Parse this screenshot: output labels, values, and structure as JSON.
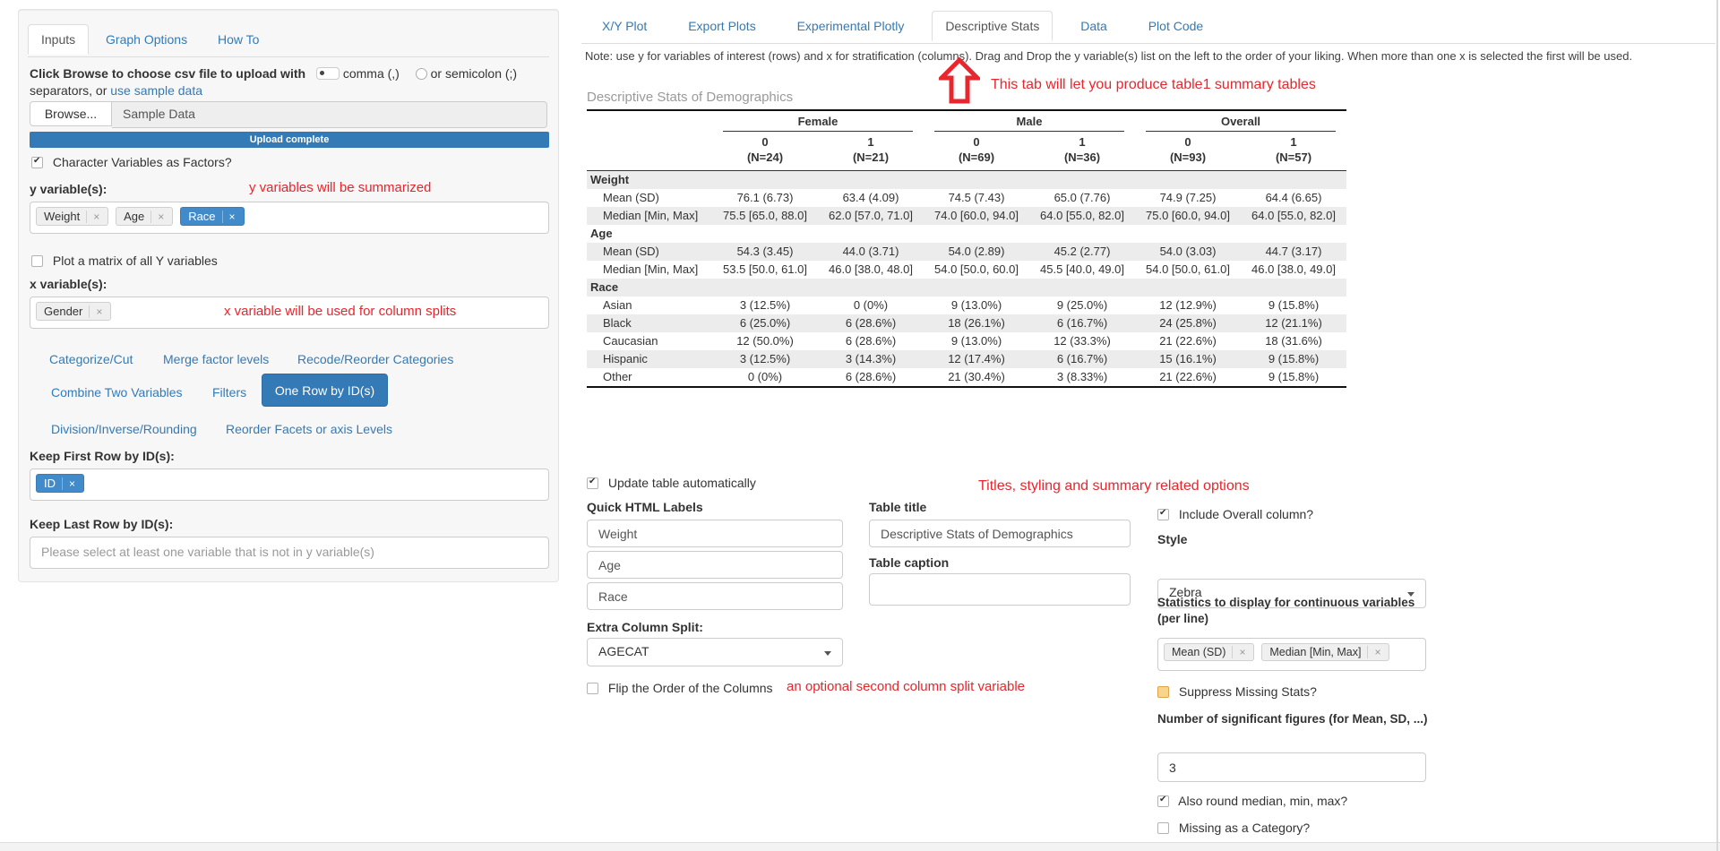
{
  "colors": {
    "accent": "#337ab7",
    "token_blue": "#428bca",
    "annotation_red": "#e8262d",
    "zebra_stripe": "#ececec"
  },
  "left_panel": {
    "tabs": [
      {
        "label": "Inputs"
      },
      {
        "label": "Graph Options"
      },
      {
        "label": "How To"
      }
    ],
    "upload": {
      "bold_text": "Click Browse to choose csv file to upload with",
      "radio_comma": "comma (,)",
      "radio_semicolon": "or semicolon (;)",
      "separators_text": "separators, or",
      "sample_link": "use sample data",
      "browse_button": "Browse...",
      "file_name": "Sample Data",
      "progress": "Upload complete"
    },
    "char_factors_checkbox": "Character Variables as Factors?",
    "y_label": "y variable(s):",
    "y_annotation": "y variables will be summarized",
    "y_tokens": [
      {
        "label": "Weight"
      },
      {
        "label": "Age"
      },
      {
        "label": "Race"
      }
    ],
    "matrix_checkbox": "Plot a matrix of all Y variables",
    "x_label": "x variable(s):",
    "x_annotation": "x variable will be used for column splits",
    "x_tokens": [
      {
        "label": "Gender"
      }
    ],
    "tool_links": {
      "categorize": "Categorize/Cut",
      "merge": "Merge factor levels",
      "recode": "Recode/Reorder Categories",
      "combine": "Combine Two Variables",
      "filters": "Filters",
      "one_row_button": "One Row by ID(s)",
      "division": "Division/Inverse/Rounding",
      "reorder": "Reorder Facets or axis Levels"
    },
    "keep_first_label": "Keep First Row by ID(s):",
    "keep_first_token": "ID",
    "keep_last_label": "Keep Last Row by ID(s):",
    "keep_last_placeholder": "Please select at least one variable that is not in y variable(s)"
  },
  "main": {
    "tabs": [
      {
        "label": "X/Y Plot"
      },
      {
        "label": "Export Plots"
      },
      {
        "label": "Experimental Plotly"
      },
      {
        "label": "Descriptive Stats"
      },
      {
        "label": "Data"
      },
      {
        "label": "Plot Code"
      }
    ],
    "note": "Note: use y for variables of interest (rows) and x for stratification (columns). Drag and Drop the y variable(s) list on the left to the order of your liking. When more than one x is selected the first will be used.",
    "arrow_annotation": "This tab will let you produce table1 summary tables",
    "table_title": "Descriptive Stats of Demographics"
  },
  "chart_data": {
    "type": "table",
    "title": "Descriptive Stats of Demographics",
    "column_groups": [
      {
        "label": "Female",
        "span": 2
      },
      {
        "label": "Male",
        "span": 2
      },
      {
        "label": "Overall",
        "span": 2
      }
    ],
    "columns": [
      {
        "level": "0",
        "n": "(N=24)"
      },
      {
        "level": "1",
        "n": "(N=21)"
      },
      {
        "level": "0",
        "n": "(N=69)"
      },
      {
        "level": "1",
        "n": "(N=36)"
      },
      {
        "level": "0",
        "n": "(N=93)"
      },
      {
        "level": "1",
        "n": "(N=57)"
      }
    ],
    "rows": [
      {
        "kind": "section",
        "label": "Weight"
      },
      {
        "kind": "data",
        "label": "Mean (SD)",
        "values": [
          "76.1 (6.73)",
          "63.4 (4.09)",
          "74.5 (7.43)",
          "65.0 (7.76)",
          "74.9 (7.25)",
          "64.4 (6.65)"
        ]
      },
      {
        "kind": "data",
        "label": "Median [Min, Max]",
        "values": [
          "75.5 [65.0, 88.0]",
          "62.0 [57.0, 71.0]",
          "74.0 [60.0, 94.0]",
          "64.0 [55.0, 82.0]",
          "75.0 [60.0, 94.0]",
          "64.0 [55.0, 82.0]"
        ]
      },
      {
        "kind": "section",
        "label": "Age"
      },
      {
        "kind": "data",
        "label": "Mean (SD)",
        "values": [
          "54.3 (3.45)",
          "44.0 (3.71)",
          "54.0 (2.89)",
          "45.2 (2.77)",
          "54.0 (3.03)",
          "44.7 (3.17)"
        ]
      },
      {
        "kind": "data",
        "label": "Median [Min, Max]",
        "values": [
          "53.5 [50.0, 61.0]",
          "46.0 [38.0, 48.0]",
          "54.0 [50.0, 60.0]",
          "45.5 [40.0, 49.0]",
          "54.0 [50.0, 61.0]",
          "46.0 [38.0, 49.0]"
        ]
      },
      {
        "kind": "section",
        "label": "Race"
      },
      {
        "kind": "data",
        "label": "Asian",
        "values": [
          "3 (12.5%)",
          "0 (0%)",
          "9 (13.0%)",
          "9 (25.0%)",
          "12 (12.9%)",
          "9 (15.8%)"
        ]
      },
      {
        "kind": "data",
        "label": "Black",
        "values": [
          "6 (25.0%)",
          "6 (28.6%)",
          "18 (26.1%)",
          "6 (16.7%)",
          "24 (25.8%)",
          "12 (21.1%)"
        ]
      },
      {
        "kind": "data",
        "label": "Caucasian",
        "values": [
          "12 (50.0%)",
          "6 (28.6%)",
          "9 (13.0%)",
          "12 (33.3%)",
          "21 (22.6%)",
          "18 (31.6%)"
        ]
      },
      {
        "kind": "data",
        "label": "Hispanic",
        "values": [
          "3 (12.5%)",
          "3 (14.3%)",
          "12 (17.4%)",
          "6 (16.7%)",
          "15 (16.1%)",
          "9 (15.8%)"
        ]
      },
      {
        "kind": "data",
        "label": "Other",
        "values": [
          "0 (0%)",
          "6 (28.6%)",
          "21 (30.4%)",
          "3 (8.33%)",
          "21 (22.6%)",
          "9 (15.8%)"
        ]
      }
    ]
  },
  "controls": {
    "update_auto": "Update table automatically",
    "quick_labels_title": "Quick HTML Labels",
    "quick_labels": [
      "Weight",
      "Age",
      "Race"
    ],
    "extra_split_label": "Extra Column Split:",
    "extra_split_value": "AGECAT",
    "flip_label": "Flip the Order of the Columns",
    "flip_annotation": "an optional second column split variable",
    "table_title_label": "Table title",
    "table_title_value": "Descriptive Stats of Demographics",
    "table_caption_label": "Table caption",
    "styling_annotation": "Titles, styling and summary related options",
    "include_overall": "Include Overall column?",
    "style_label": "Style",
    "style_value": "Zebra",
    "stats_label": "Statistics to display for continuous variables (per line)",
    "stats_tokens": [
      "Mean (SD)",
      "Median [Min, Max]"
    ],
    "suppress_label": "Suppress Missing Stats?",
    "sigfig_label": "Number of significant figures (for Mean, SD, ...)",
    "sigfig_value": "3",
    "round_label": "Also round median, min, max?",
    "missing_label": "Missing as a Category?"
  }
}
